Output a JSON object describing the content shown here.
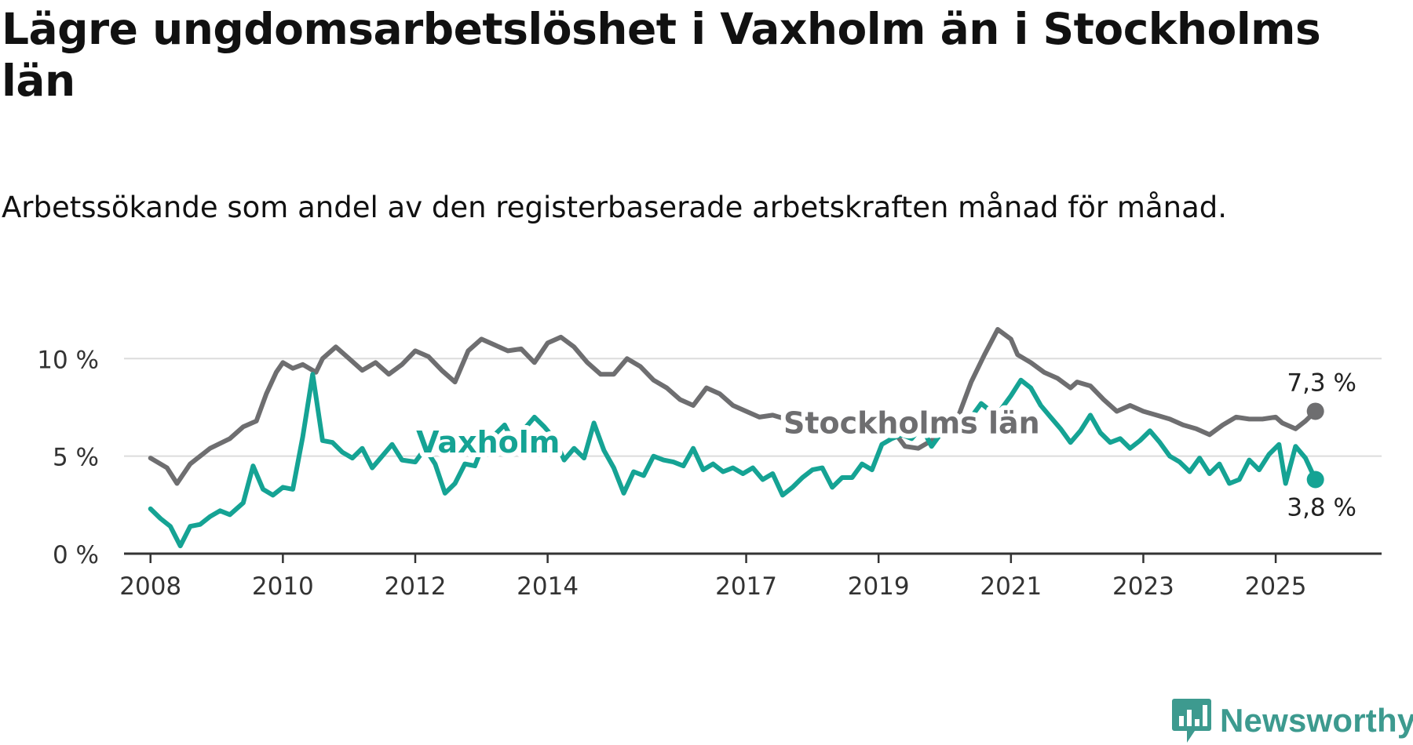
{
  "title": "Lägre ungdomsarbetslöshet i Vaxholm än i Stockholms län",
  "subtitle": "Arbetssökande som andel av den registerbaserade arbetskraften månad för månad.",
  "brand": {
    "name": "Newsworthy",
    "icon": "newsworthy-logo-icon"
  },
  "chart_data": {
    "type": "line",
    "x_unit": "decimal-year",
    "xlim": [
      2007.6,
      2026.6
    ],
    "ylim": [
      0,
      11.5
    ],
    "y_ticks": [
      {
        "value": 0,
        "label": "0 %"
      },
      {
        "value": 5,
        "label": "5 %"
      },
      {
        "value": 10,
        "label": "10 %"
      }
    ],
    "x_ticks": [
      {
        "value": 2008,
        "label": "2008"
      },
      {
        "value": 2010,
        "label": "2010"
      },
      {
        "value": 2012,
        "label": "2012"
      },
      {
        "value": 2014,
        "label": "2014"
      },
      {
        "value": 2017,
        "label": "2017"
      },
      {
        "value": 2019,
        "label": "2019"
      },
      {
        "value": 2021,
        "label": "2021"
      },
      {
        "value": 2023,
        "label": "2023"
      },
      {
        "value": 2025,
        "label": "2025"
      }
    ],
    "grid": true,
    "legend": "inline-labels",
    "series": [
      {
        "name": "Stockholms län",
        "color": "#6e6e70",
        "label_at": {
          "x": 2019.5,
          "y": 6.7
        },
        "end_label": "7,3 %",
        "points": [
          [
            2008.0,
            4.9
          ],
          [
            2008.25,
            4.4
          ],
          [
            2008.4,
            3.6
          ],
          [
            2008.6,
            4.6
          ],
          [
            2008.9,
            5.4
          ],
          [
            2009.2,
            5.9
          ],
          [
            2009.4,
            6.5
          ],
          [
            2009.6,
            6.8
          ],
          [
            2009.75,
            8.2
          ],
          [
            2009.9,
            9.3
          ],
          [
            2010.0,
            9.8
          ],
          [
            2010.15,
            9.5
          ],
          [
            2010.3,
            9.7
          ],
          [
            2010.5,
            9.3
          ],
          [
            2010.6,
            10.0
          ],
          [
            2010.8,
            10.6
          ],
          [
            2011.0,
            10.0
          ],
          [
            2011.2,
            9.4
          ],
          [
            2011.4,
            9.8
          ],
          [
            2011.6,
            9.2
          ],
          [
            2011.8,
            9.7
          ],
          [
            2012.0,
            10.4
          ],
          [
            2012.2,
            10.1
          ],
          [
            2012.4,
            9.4
          ],
          [
            2012.6,
            8.8
          ],
          [
            2012.8,
            10.4
          ],
          [
            2013.0,
            11.0
          ],
          [
            2013.2,
            10.7
          ],
          [
            2013.4,
            10.4
          ],
          [
            2013.6,
            10.5
          ],
          [
            2013.8,
            9.8
          ],
          [
            2014.0,
            10.8
          ],
          [
            2014.2,
            11.1
          ],
          [
            2014.4,
            10.6
          ],
          [
            2014.6,
            9.8
          ],
          [
            2014.8,
            9.2
          ],
          [
            2015.0,
            9.2
          ],
          [
            2015.2,
            10.0
          ],
          [
            2015.4,
            9.6
          ],
          [
            2015.6,
            8.9
          ],
          [
            2015.8,
            8.5
          ],
          [
            2016.0,
            7.9
          ],
          [
            2016.2,
            7.6
          ],
          [
            2016.4,
            8.5
          ],
          [
            2016.6,
            8.2
          ],
          [
            2016.8,
            7.6
          ],
          [
            2017.0,
            7.3
          ],
          [
            2017.2,
            7.0
          ],
          [
            2017.4,
            7.1
          ],
          [
            2017.6,
            6.9
          ],
          [
            2017.8,
            7.4
          ],
          [
            2018.0,
            7.1
          ],
          [
            2018.2,
            6.7
          ],
          [
            2018.4,
            6.4
          ],
          [
            2018.6,
            6.7
          ],
          [
            2018.8,
            6.3
          ],
          [
            2019.0,
            6.2
          ],
          [
            2019.2,
            6.4
          ],
          [
            2019.4,
            5.5
          ],
          [
            2019.6,
            5.4
          ],
          [
            2019.8,
            5.8
          ],
          [
            2020.0,
            6.5
          ],
          [
            2020.2,
            7.0
          ],
          [
            2020.4,
            8.8
          ],
          [
            2020.6,
            10.2
          ],
          [
            2020.8,
            11.5
          ],
          [
            2021.0,
            11.0
          ],
          [
            2021.1,
            10.2
          ],
          [
            2021.3,
            9.8
          ],
          [
            2021.5,
            9.3
          ],
          [
            2021.7,
            9.0
          ],
          [
            2021.9,
            8.5
          ],
          [
            2022.0,
            8.8
          ],
          [
            2022.2,
            8.6
          ],
          [
            2022.4,
            7.9
          ],
          [
            2022.6,
            7.3
          ],
          [
            2022.8,
            7.6
          ],
          [
            2023.0,
            7.3
          ],
          [
            2023.2,
            7.1
          ],
          [
            2023.4,
            6.9
          ],
          [
            2023.6,
            6.6
          ],
          [
            2023.8,
            6.4
          ],
          [
            2024.0,
            6.1
          ],
          [
            2024.2,
            6.6
          ],
          [
            2024.4,
            7.0
          ],
          [
            2024.6,
            6.9
          ],
          [
            2024.8,
            6.9
          ],
          [
            2025.0,
            7.0
          ],
          [
            2025.1,
            6.7
          ],
          [
            2025.3,
            6.4
          ],
          [
            2025.45,
            6.8
          ],
          [
            2025.6,
            7.3
          ]
        ]
      },
      {
        "name": "Vaxholm",
        "color": "#15a394",
        "label_at": {
          "x": 2013.1,
          "y": 5.7
        },
        "end_label": "3,8 %",
        "points": [
          [
            2008.0,
            2.3
          ],
          [
            2008.15,
            1.8
          ],
          [
            2008.3,
            1.4
          ],
          [
            2008.45,
            0.4
          ],
          [
            2008.6,
            1.4
          ],
          [
            2008.75,
            1.5
          ],
          [
            2008.9,
            1.9
          ],
          [
            2009.05,
            2.2
          ],
          [
            2009.2,
            2.0
          ],
          [
            2009.4,
            2.6
          ],
          [
            2009.55,
            4.5
          ],
          [
            2009.7,
            3.3
          ],
          [
            2009.85,
            3.0
          ],
          [
            2010.0,
            3.4
          ],
          [
            2010.15,
            3.3
          ],
          [
            2010.3,
            6.0
          ],
          [
            2010.45,
            9.2
          ],
          [
            2010.6,
            5.8
          ],
          [
            2010.75,
            5.7
          ],
          [
            2010.9,
            5.2
          ],
          [
            2011.05,
            4.9
          ],
          [
            2011.2,
            5.4
          ],
          [
            2011.35,
            4.4
          ],
          [
            2011.5,
            5.0
          ],
          [
            2011.65,
            5.6
          ],
          [
            2011.8,
            4.8
          ],
          [
            2012.0,
            4.7
          ],
          [
            2012.15,
            5.4
          ],
          [
            2012.3,
            4.6
          ],
          [
            2012.45,
            3.1
          ],
          [
            2012.6,
            3.6
          ],
          [
            2012.75,
            4.6
          ],
          [
            2012.9,
            4.5
          ],
          [
            2013.05,
            5.8
          ],
          [
            2013.2,
            6.1
          ],
          [
            2013.35,
            6.6
          ],
          [
            2013.5,
            5.6
          ],
          [
            2013.65,
            6.4
          ],
          [
            2013.8,
            7.0
          ],
          [
            2013.95,
            6.5
          ],
          [
            2014.1,
            5.9
          ],
          [
            2014.25,
            4.8
          ],
          [
            2014.4,
            5.4
          ],
          [
            2014.55,
            4.9
          ],
          [
            2014.7,
            6.7
          ],
          [
            2014.85,
            5.3
          ],
          [
            2015.0,
            4.4
          ],
          [
            2015.15,
            3.1
          ],
          [
            2015.3,
            4.2
          ],
          [
            2015.45,
            4.0
          ],
          [
            2015.6,
            5.0
          ],
          [
            2015.75,
            4.8
          ],
          [
            2015.9,
            4.7
          ],
          [
            2016.05,
            4.5
          ],
          [
            2016.2,
            5.4
          ],
          [
            2016.35,
            4.3
          ],
          [
            2016.5,
            4.6
          ],
          [
            2016.65,
            4.2
          ],
          [
            2016.8,
            4.4
          ],
          [
            2016.95,
            4.1
          ],
          [
            2017.1,
            4.4
          ],
          [
            2017.25,
            3.8
          ],
          [
            2017.4,
            4.1
          ],
          [
            2017.55,
            3.0
          ],
          [
            2017.7,
            3.4
          ],
          [
            2017.85,
            3.9
          ],
          [
            2018.0,
            4.3
          ],
          [
            2018.15,
            4.4
          ],
          [
            2018.3,
            3.4
          ],
          [
            2018.45,
            3.9
          ],
          [
            2018.6,
            3.9
          ],
          [
            2018.75,
            4.6
          ],
          [
            2018.9,
            4.3
          ],
          [
            2019.05,
            5.6
          ],
          [
            2019.2,
            5.9
          ],
          [
            2019.35,
            6.1
          ],
          [
            2019.5,
            5.9
          ],
          [
            2019.65,
            6.5
          ],
          [
            2019.8,
            5.5
          ],
          [
            2019.95,
            6.2
          ],
          [
            2020.1,
            6.4
          ],
          [
            2020.25,
            6.7
          ],
          [
            2020.4,
            7.0
          ],
          [
            2020.55,
            7.7
          ],
          [
            2020.7,
            7.3
          ],
          [
            2020.85,
            7.4
          ],
          [
            2021.0,
            8.1
          ],
          [
            2021.15,
            8.9
          ],
          [
            2021.3,
            8.5
          ],
          [
            2021.45,
            7.6
          ],
          [
            2021.6,
            7.0
          ],
          [
            2021.75,
            6.4
          ],
          [
            2021.9,
            5.7
          ],
          [
            2022.05,
            6.3
          ],
          [
            2022.2,
            7.1
          ],
          [
            2022.35,
            6.2
          ],
          [
            2022.5,
            5.7
          ],
          [
            2022.65,
            5.9
          ],
          [
            2022.8,
            5.4
          ],
          [
            2022.95,
            5.8
          ],
          [
            2023.1,
            6.3
          ],
          [
            2023.25,
            5.7
          ],
          [
            2023.4,
            5.0
          ],
          [
            2023.55,
            4.7
          ],
          [
            2023.7,
            4.2
          ],
          [
            2023.85,
            4.9
          ],
          [
            2024.0,
            4.1
          ],
          [
            2024.15,
            4.6
          ],
          [
            2024.3,
            3.6
          ],
          [
            2024.45,
            3.8
          ],
          [
            2024.6,
            4.8
          ],
          [
            2024.75,
            4.3
          ],
          [
            2024.9,
            5.1
          ],
          [
            2025.05,
            5.6
          ],
          [
            2025.15,
            3.6
          ],
          [
            2025.3,
            5.5
          ],
          [
            2025.45,
            4.9
          ],
          [
            2025.6,
            3.8
          ]
        ]
      }
    ]
  }
}
